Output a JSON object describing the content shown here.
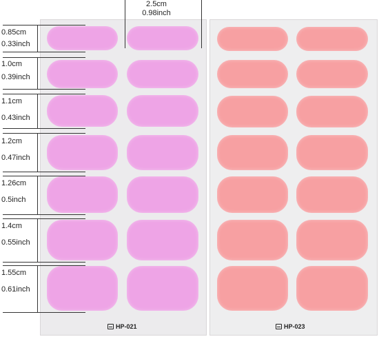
{
  "top_dimension": {
    "cm": "2.5cm",
    "inch": "0.98inch"
  },
  "sizes": [
    {
      "cm": "0.85cm",
      "inch": "0.33inch"
    },
    {
      "cm": "1.0cm",
      "inch": "0.39inch"
    },
    {
      "cm": "1.1cm",
      "inch": "0.43inch"
    },
    {
      "cm": "1.2cm",
      "inch": "0.47inch"
    },
    {
      "cm": "1.26cm",
      "inch": "0.5inch"
    },
    {
      "cm": "1.4cm",
      "inch": "0.55inch"
    },
    {
      "cm": "1.55cm",
      "inch": "0.61inch"
    }
  ],
  "sheets": [
    {
      "code": "HP-021",
      "color": "#eea4e6"
    },
    {
      "code": "HP-023",
      "color": "#f7a0a2"
    }
  ]
}
